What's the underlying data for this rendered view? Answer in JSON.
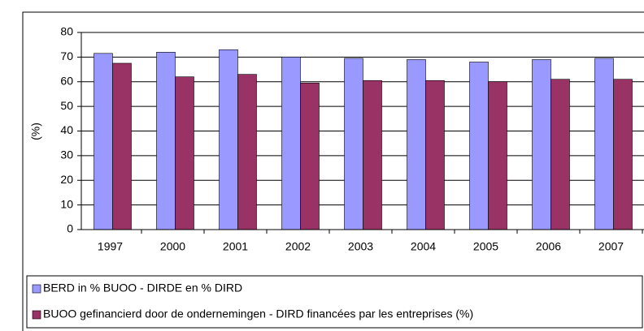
{
  "chart_data": {
    "type": "bar",
    "y_label": "(%)",
    "categories": [
      "1997",
      "2000",
      "2001",
      "2002",
      "2003",
      "2004",
      "2005",
      "2006",
      "2007"
    ],
    "series": [
      {
        "name": "BERD in % BUOO - DIRDE en % DIRD",
        "color": "#9999ff",
        "values": [
          71.5,
          72,
          73,
          70,
          69.5,
          69,
          68,
          69,
          69.5
        ]
      },
      {
        "name": "BUOO gefinancierd door de ondernemingen - DIRD financées par les entreprises (%)",
        "color": "#993366",
        "values": [
          67.5,
          62,
          63,
          59.5,
          60.5,
          60.5,
          60,
          61,
          61
        ]
      }
    ],
    "ylim": [
      0,
      80
    ],
    "yticks": [
      0,
      10,
      20,
      30,
      40,
      50,
      60,
      70,
      80
    ],
    "grid": true,
    "legend": "bottom"
  }
}
